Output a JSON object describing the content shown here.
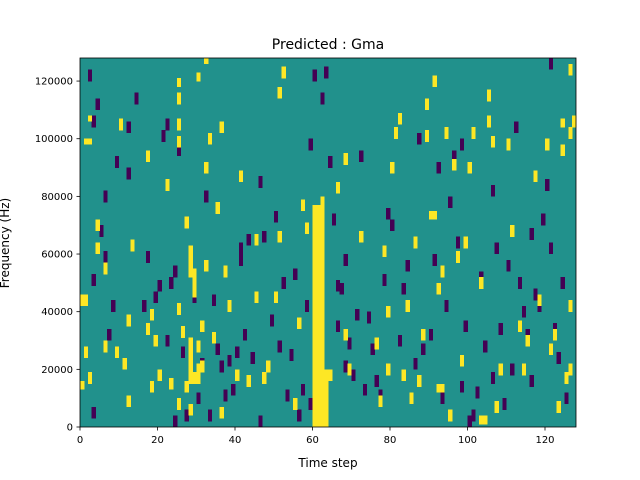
{
  "chart_data": {
    "type": "heatmap",
    "title": "Predicted : Gma",
    "xlabel": "Time step",
    "ylabel": "Frequency (Hz)",
    "xlim": [
      0,
      128
    ],
    "ylim": [
      0,
      128000
    ],
    "x_ticks": [
      0,
      20,
      40,
      60,
      80,
      100,
      120
    ],
    "y_ticks": [
      0,
      20000,
      40000,
      60000,
      80000,
      100000,
      120000
    ],
    "x_tick_labels": [
      "0",
      "20",
      "40",
      "60",
      "80",
      "100",
      "120"
    ],
    "y_tick_labels": [
      "0",
      "20000",
      "40000",
      "60000",
      "80000",
      "100000",
      "120000"
    ],
    "n_time_steps": 128,
    "n_frequency_bins": 128,
    "bin_hz": 1000,
    "colormap": {
      "background": "#21918c",
      "high": "#fde725",
      "low": "#440154"
    },
    "background_value": 0,
    "grid": false,
    "legend": "none",
    "high_cells": [
      [
        60,
        0,
        77
      ],
      [
        61,
        0,
        77
      ],
      [
        62,
        0,
        80
      ],
      [
        63,
        0,
        20
      ],
      [
        27,
        12,
        16
      ],
      [
        28,
        15,
        31
      ],
      [
        29,
        15,
        19
      ],
      [
        30,
        15,
        22
      ],
      [
        28,
        60,
        63
      ],
      [
        29,
        45,
        55
      ],
      [
        28,
        52,
        57
      ],
      [
        92,
        12,
        15
      ],
      [
        93,
        12,
        15
      ],
      [
        90,
        72,
        75
      ],
      [
        91,
        72,
        75
      ],
      [
        104,
        1,
        4
      ],
      [
        103,
        1,
        4
      ],
      [
        32,
        126,
        128
      ],
      [
        2,
        106,
        108
      ],
      [
        1,
        98,
        100
      ],
      [
        2,
        98,
        100
      ],
      [
        0,
        42,
        46
      ],
      [
        1,
        42,
        46
      ],
      [
        0,
        13,
        16
      ],
      [
        1,
        24,
        28
      ],
      [
        2,
        15,
        19
      ],
      [
        4,
        60,
        64
      ],
      [
        4,
        68,
        72
      ],
      [
        6,
        53,
        57
      ],
      [
        6,
        26,
        30
      ],
      [
        9,
        24,
        28
      ],
      [
        11,
        20,
        24
      ],
      [
        12,
        35,
        39
      ],
      [
        12,
        7,
        11
      ],
      [
        13,
        61,
        65
      ],
      [
        10,
        103,
        107
      ],
      [
        17,
        92,
        96
      ],
      [
        17,
        32,
        36
      ],
      [
        18,
        12,
        16
      ],
      [
        18,
        37,
        41
      ],
      [
        20,
        16,
        20
      ],
      [
        19,
        28,
        32
      ],
      [
        22,
        82,
        86
      ],
      [
        23,
        13,
        17
      ],
      [
        25,
        6,
        10
      ],
      [
        25,
        39,
        43
      ],
      [
        25,
        112,
        116
      ],
      [
        25,
        103,
        107
      ],
      [
        25,
        97,
        101
      ],
      [
        26,
        31,
        35
      ],
      [
        27,
        69,
        73
      ],
      [
        28,
        4,
        8
      ],
      [
        28,
        56,
        60
      ],
      [
        29,
        49,
        53
      ],
      [
        30,
        26,
        30
      ],
      [
        31,
        33,
        37
      ],
      [
        31,
        19,
        23
      ],
      [
        32,
        54,
        58
      ],
      [
        32,
        88,
        92
      ],
      [
        33,
        98,
        102
      ],
      [
        34,
        29,
        33
      ],
      [
        35,
        74,
        78
      ],
      [
        36,
        102,
        106
      ],
      [
        36,
        3,
        7
      ],
      [
        37,
        52,
        56
      ],
      [
        38,
        40,
        44
      ],
      [
        40,
        16,
        20
      ],
      [
        41,
        85,
        89
      ],
      [
        43,
        14,
        18
      ],
      [
        45,
        43,
        47
      ],
      [
        45,
        63,
        67
      ],
      [
        47,
        15,
        19
      ],
      [
        48,
        19,
        23
      ],
      [
        50,
        43,
        47
      ],
      [
        51,
        64,
        68
      ],
      [
        51,
        114,
        118
      ],
      [
        52,
        121,
        125
      ],
      [
        55,
        6,
        10
      ],
      [
        56,
        34,
        38
      ],
      [
        57,
        75,
        79
      ],
      [
        58,
        67,
        71
      ],
      [
        64,
        16,
        20
      ],
      [
        66,
        81,
        85
      ],
      [
        68,
        30,
        34
      ],
      [
        68,
        91,
        95
      ],
      [
        69,
        18,
        22
      ],
      [
        72,
        64,
        68
      ],
      [
        76,
        27,
        31
      ],
      [
        77,
        7,
        11
      ],
      [
        78,
        59,
        63
      ],
      [
        79,
        38,
        42
      ],
      [
        79,
        18,
        22
      ],
      [
        80,
        88,
        92
      ],
      [
        81,
        100,
        104
      ],
      [
        82,
        105,
        109
      ],
      [
        83,
        16,
        20
      ],
      [
        84,
        40,
        44
      ],
      [
        85,
        8,
        12
      ],
      [
        86,
        62,
        66
      ],
      [
        87,
        14,
        18
      ],
      [
        88,
        30,
        34
      ],
      [
        89,
        99,
        103
      ],
      [
        91,
        118,
        122
      ],
      [
        92,
        46,
        50
      ],
      [
        93,
        52,
        56
      ],
      [
        94,
        100,
        104
      ],
      [
        95,
        2,
        6
      ],
      [
        96,
        89,
        93
      ],
      [
        97,
        57,
        61
      ],
      [
        98,
        21,
        25
      ],
      [
        99,
        62,
        66
      ],
      [
        100,
        88,
        92
      ],
      [
        101,
        100,
        104
      ],
      [
        103,
        48,
        52
      ],
      [
        105,
        104,
        108
      ],
      [
        106,
        97,
        101
      ],
      [
        107,
        5,
        9
      ],
      [
        108,
        18,
        22
      ],
      [
        110,
        96,
        100
      ],
      [
        111,
        66,
        70
      ],
      [
        113,
        33,
        37
      ],
      [
        114,
        18,
        22
      ],
      [
        115,
        28,
        32
      ],
      [
        117,
        85,
        89
      ],
      [
        118,
        42,
        46
      ],
      [
        120,
        96,
        100
      ],
      [
        121,
        25,
        29
      ],
      [
        122,
        30,
        34
      ],
      [
        123,
        5,
        9
      ],
      [
        124,
        94,
        98
      ],
      [
        125,
        15,
        19
      ],
      [
        126,
        18,
        22
      ],
      [
        127,
        104,
        108
      ],
      [
        126,
        40,
        44
      ],
      [
        126,
        122,
        126
      ],
      [
        89,
        110,
        114
      ],
      [
        105,
        113,
        117
      ],
      [
        126,
        100,
        104
      ],
      [
        124,
        104,
        107
      ],
      [
        30,
        120,
        123
      ],
      [
        25,
        118,
        121
      ]
    ],
    "low_cells": [
      [
        2,
        120,
        124
      ],
      [
        4,
        110,
        114
      ],
      [
        3,
        104,
        108
      ],
      [
        6,
        78,
        82
      ],
      [
        5,
        66,
        70
      ],
      [
        6,
        57,
        61
      ],
      [
        3,
        49,
        53
      ],
      [
        3,
        3,
        7
      ],
      [
        8,
        40,
        44
      ],
      [
        7,
        30,
        34
      ],
      [
        9,
        90,
        94
      ],
      [
        12,
        86,
        90
      ],
      [
        12,
        102,
        106
      ],
      [
        14,
        112,
        116
      ],
      [
        16,
        40,
        44
      ],
      [
        17,
        57,
        61
      ],
      [
        19,
        43,
        47
      ],
      [
        20,
        47,
        51
      ],
      [
        21,
        99,
        103
      ],
      [
        22,
        103,
        107
      ],
      [
        22,
        28,
        32
      ],
      [
        23,
        48,
        52
      ],
      [
        24,
        52,
        56
      ],
      [
        24,
        0,
        4
      ],
      [
        26,
        24,
        28
      ],
      [
        27,
        2,
        6
      ],
      [
        29,
        43,
        47
      ],
      [
        30,
        8,
        12
      ],
      [
        31,
        20,
        24
      ],
      [
        32,
        78,
        82
      ],
      [
        33,
        2,
        6
      ],
      [
        34,
        42,
        46
      ],
      [
        35,
        25,
        29
      ],
      [
        36,
        19,
        23
      ],
      [
        37,
        9,
        13
      ],
      [
        38,
        21,
        25
      ],
      [
        39,
        11,
        15
      ],
      [
        40,
        24,
        28
      ],
      [
        41,
        56,
        60
      ],
      [
        42,
        30,
        34
      ],
      [
        43,
        63,
        67
      ],
      [
        44,
        22,
        26
      ],
      [
        46,
        0,
        4
      ],
      [
        46,
        83,
        87
      ],
      [
        47,
        64,
        68
      ],
      [
        49,
        35,
        39
      ],
      [
        50,
        71,
        75
      ],
      [
        51,
        26,
        30
      ],
      [
        52,
        48,
        52
      ],
      [
        53,
        9,
        13
      ],
      [
        54,
        23,
        27
      ],
      [
        55,
        51,
        55
      ],
      [
        56,
        2,
        6
      ],
      [
        57,
        11,
        15
      ],
      [
        58,
        40,
        44
      ],
      [
        59,
        6,
        10
      ],
      [
        60,
        120,
        124
      ],
      [
        59,
        96,
        100
      ],
      [
        62,
        112,
        116
      ],
      [
        63,
        121,
        125
      ],
      [
        64,
        90,
        94
      ],
      [
        65,
        70,
        74
      ],
      [
        66,
        47,
        51
      ],
      [
        66,
        33,
        37
      ],
      [
        67,
        46,
        50
      ],
      [
        68,
        56,
        60
      ],
      [
        68,
        19,
        23
      ],
      [
        69,
        27,
        31
      ],
      [
        70,
        16,
        20
      ],
      [
        71,
        37,
        41
      ],
      [
        72,
        92,
        96
      ],
      [
        73,
        11,
        15
      ],
      [
        74,
        36,
        40
      ],
      [
        75,
        25,
        29
      ],
      [
        76,
        14,
        18
      ],
      [
        77,
        9,
        13
      ],
      [
        78,
        49,
        53
      ],
      [
        79,
        72,
        76
      ],
      [
        80,
        68,
        72
      ],
      [
        82,
        28,
        32
      ],
      [
        83,
        46,
        50
      ],
      [
        84,
        54,
        58
      ],
      [
        86,
        20,
        24
      ],
      [
        87,
        98,
        102
      ],
      [
        88,
        25,
        29
      ],
      [
        90,
        30,
        34
      ],
      [
        91,
        56,
        60
      ],
      [
        92,
        88,
        92
      ],
      [
        93,
        8,
        12
      ],
      [
        94,
        40,
        44
      ],
      [
        95,
        76,
        80
      ],
      [
        96,
        92,
        96
      ],
      [
        97,
        62,
        66
      ],
      [
        98,
        12,
        16
      ],
      [
        99,
        33,
        37
      ],
      [
        100,
        0,
        4
      ],
      [
        101,
        2,
        6
      ],
      [
        102,
        10,
        14
      ],
      [
        103,
        50,
        54
      ],
      [
        104,
        26,
        30
      ],
      [
        106,
        15,
        19
      ],
      [
        107,
        60,
        64
      ],
      [
        108,
        32,
        36
      ],
      [
        109,
        6,
        10
      ],
      [
        110,
        54,
        58
      ],
      [
        111,
        18,
        22
      ],
      [
        112,
        102,
        106
      ],
      [
        113,
        48,
        52
      ],
      [
        114,
        38,
        42
      ],
      [
        115,
        30,
        34
      ],
      [
        116,
        14,
        18
      ],
      [
        117,
        44,
        48
      ],
      [
        119,
        70,
        74
      ],
      [
        120,
        82,
        86
      ],
      [
        121,
        60,
        64
      ],
      [
        122,
        32,
        36
      ],
      [
        123,
        22,
        26
      ],
      [
        124,
        48,
        52
      ],
      [
        125,
        8,
        12
      ],
      [
        121,
        124,
        128
      ],
      [
        116,
        65,
        69
      ],
      [
        118,
        40,
        44
      ],
      [
        106,
        80,
        84
      ],
      [
        98,
        96,
        100
      ],
      [
        25,
        94,
        98
      ],
      [
        41,
        60,
        64
      ]
    ]
  }
}
